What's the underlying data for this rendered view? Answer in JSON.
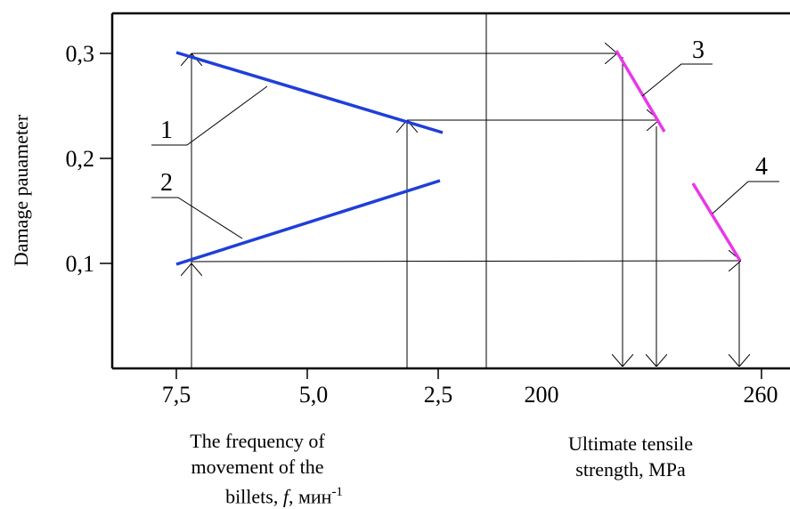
{
  "chart_data": {
    "type": "line",
    "ylabel": "Damage pauameter",
    "y_ticks": [
      "0,1",
      "0,2",
      "0,3"
    ],
    "left_panel": {
      "xlabel": {
        "line1": "The frequency of",
        "line2": "movement of the",
        "line3_prefix": "billets,",
        "line3_var": "f",
        "line3_unit": ", мин",
        "line3_sup": "-1"
      },
      "x_ticks": [
        "7,5",
        "5,0",
        "2,5"
      ],
      "series": [
        {
          "name": "1",
          "x": [
            7.5,
            2.5
          ],
          "y": [
            0.3,
            0.226
          ]
        },
        {
          "name": "2",
          "x": [
            7.5,
            2.5
          ],
          "y": [
            0.1,
            0.178
          ]
        }
      ],
      "color": "#1f3fd8"
    },
    "right_panel": {
      "xlabel": {
        "line1": "Ultimate tensile",
        "line2": "strength, MPa"
      },
      "x_ticks": [
        "200",
        "260"
      ],
      "series": [
        {
          "name": "3",
          "x": [
            226,
            240
          ],
          "y": [
            0.3,
            0.226
          ]
        },
        {
          "name": "4",
          "x": [
            247,
            258
          ],
          "y": [
            0.178,
            0.1
          ]
        }
      ],
      "color": "#e838e8"
    },
    "arrows": [
      {
        "from": "series 2 at 7,4 (0,1)",
        "to": "series 1 at 7,4 (0,298)"
      },
      {
        "from": "series 1 at 7,4 (0,298)",
        "to": "series 3 at 226 (0,300)"
      },
      {
        "from": "x axis at 3,0",
        "to": "series 1 at 3,0 (0,234)"
      },
      {
        "from": "series 1 at 3,0 (0,234)",
        "to": "series 3 at 238 (0,234)"
      },
      {
        "from": "series 2 at 7,4 (0,1)",
        "to": "series 4 at 258 (0,1)"
      },
      {
        "from": "series 3 at 226",
        "to": "x axis at 226"
      },
      {
        "from": "series 3 at 238",
        "to": "x axis at 238"
      },
      {
        "from": "series 4 at 258",
        "to": "x axis at 258"
      }
    ]
  }
}
